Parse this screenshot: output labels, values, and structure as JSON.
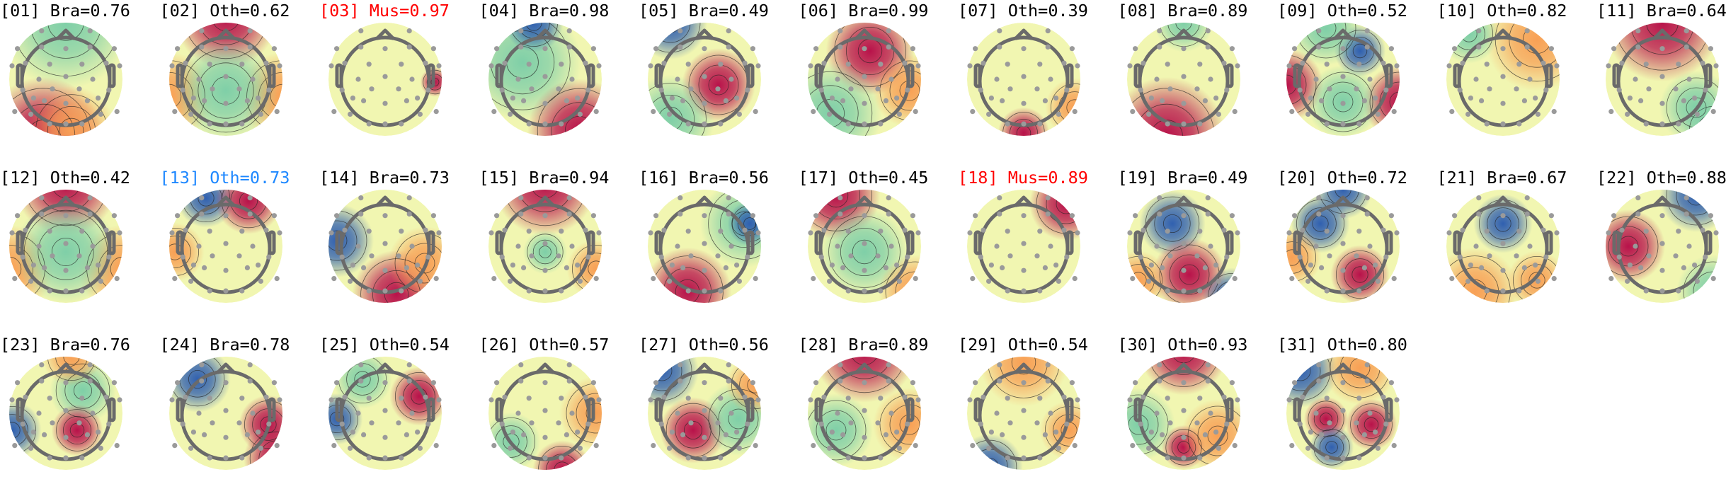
{
  "colormap": {
    "cold": "#3060b0",
    "cool": "#7fcfa8",
    "neutral": "#f8f7b6",
    "warm": "#f8a055",
    "hot": "#b8124a"
  },
  "label_colors": {
    "default": "#000000",
    "muscle": "#ff0000",
    "selected": "#1e88ff"
  },
  "components": [
    {
      "label": "[01] Bra=0.76",
      "status": "default"
    },
    {
      "label": "[02] Oth=0.62",
      "status": "default"
    },
    {
      "label": "[03] Mus=0.97",
      "status": "muscle"
    },
    {
      "label": "[04] Bra=0.98",
      "status": "default"
    },
    {
      "label": "[05] Bra=0.49",
      "status": "default"
    },
    {
      "label": "[06] Bra=0.99",
      "status": "default"
    },
    {
      "label": "[07] Oth=0.39",
      "status": "default"
    },
    {
      "label": "[08] Bra=0.89",
      "status": "default"
    },
    {
      "label": "[09] Oth=0.52",
      "status": "default"
    },
    {
      "label": "[10] Oth=0.82",
      "status": "default"
    },
    {
      "label": "[11] Bra=0.64",
      "status": "default"
    },
    {
      "label": "[12] Oth=0.42",
      "status": "default"
    },
    {
      "label": "[13] Oth=0.73",
      "status": "selected"
    },
    {
      "label": "[14] Bra=0.73",
      "status": "default"
    },
    {
      "label": "[15] Bra=0.94",
      "status": "default"
    },
    {
      "label": "[16] Bra=0.56",
      "status": "default"
    },
    {
      "label": "[17] Oth=0.45",
      "status": "default"
    },
    {
      "label": "[18] Mus=0.89",
      "status": "muscle"
    },
    {
      "label": "[19] Bra=0.49",
      "status": "default"
    },
    {
      "label": "[20] Oth=0.72",
      "status": "default"
    },
    {
      "label": "[21] Bra=0.67",
      "status": "default"
    },
    {
      "label": "[22] Oth=0.88",
      "status": "default"
    },
    {
      "label": "[23] Bra=0.76",
      "status": "default"
    },
    {
      "label": "[24] Bra=0.78",
      "status": "default"
    },
    {
      "label": "[25] Oth=0.54",
      "status": "default"
    },
    {
      "label": "[26] Oth=0.57",
      "status": "default"
    },
    {
      "label": "[27] Oth=0.56",
      "status": "default"
    },
    {
      "label": "[28] Bra=0.89",
      "status": "default"
    },
    {
      "label": "[29] Oth=0.54",
      "status": "default"
    },
    {
      "label": "[30] Oth=0.93",
      "status": "default"
    },
    {
      "label": "[31] Oth=0.80",
      "status": "default"
    }
  ]
}
